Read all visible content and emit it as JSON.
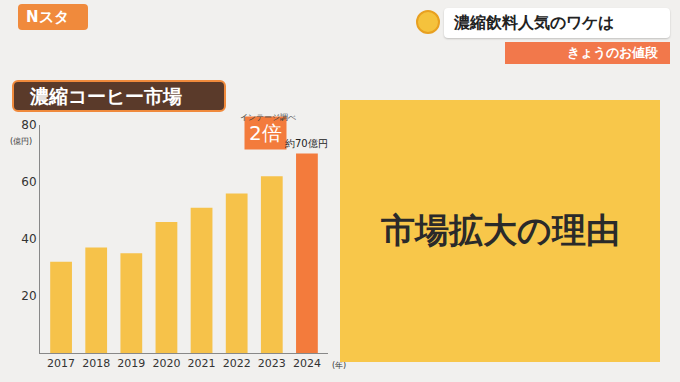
{
  "header": {
    "program": "Nスタ",
    "headline": "濃縮飲料人気のワケは",
    "corner": "きょうのお値段"
  },
  "panel": {
    "text": "市場拡大の理由"
  },
  "chart_data": {
    "type": "bar",
    "title": "濃縮コーヒー市場",
    "source": "インテージ調べ",
    "x_label": "(年)",
    "y_label": "(億円)",
    "categories": [
      "2017",
      "2018",
      "2019",
      "2020",
      "2021",
      "2022",
      "2023",
      "2024"
    ],
    "values": [
      32,
      37,
      35,
      46,
      51,
      56,
      62,
      70
    ],
    "colors": [
      "#f6c24a",
      "#f6c24a",
      "#f6c24a",
      "#f6c24a",
      "#f6c24a",
      "#f6c24a",
      "#f6c24a",
      "#f37b3c"
    ],
    "ylim": [
      0,
      80
    ],
    "yticks": [
      20,
      40,
      60,
      80
    ],
    "grid": false,
    "annotations": [
      {
        "category": "2024",
        "text": "2倍"
      },
      {
        "category": "2024",
        "text": "約70億円"
      }
    ]
  }
}
